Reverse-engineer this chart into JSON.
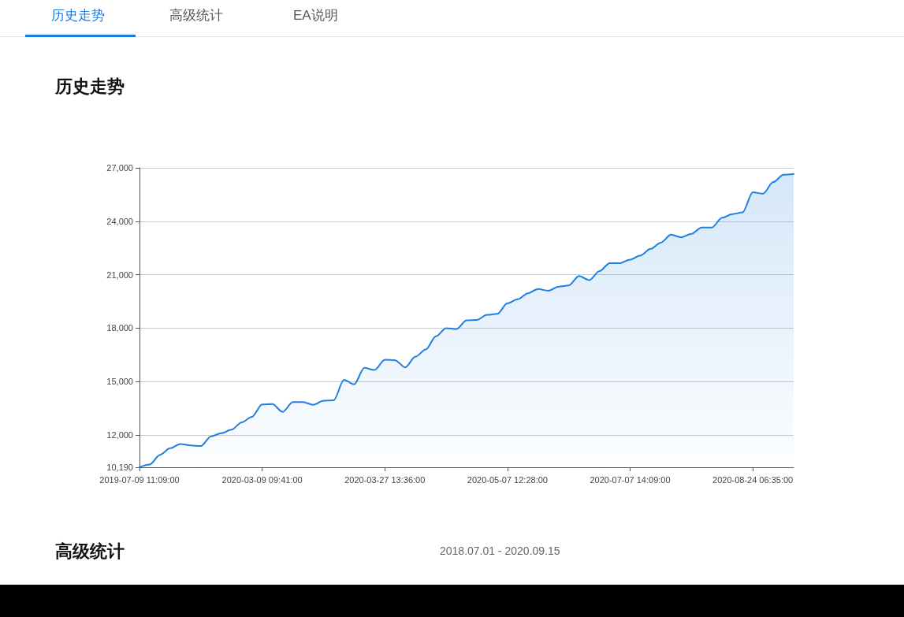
{
  "chart_data": {
    "type": "area",
    "title": "历史走势",
    "annotations": [
      "历史走势",
      "高级统计",
      "EA说明",
      "高级统计",
      "2018.07.01 - 2020.09.15"
    ],
    "categories": [
      "2019-07-09 11:09:00",
      null,
      null,
      null,
      null,
      null,
      null,
      null,
      null,
      null,
      null,
      null,
      "2020-03-09 09:41:00",
      null,
      null,
      null,
      null,
      null,
      null,
      null,
      null,
      null,
      null,
      null,
      "2020-03-27 13:36:00",
      null,
      null,
      null,
      null,
      null,
      null,
      null,
      null,
      null,
      null,
      null,
      "2020-05-07 12:28:00",
      null,
      null,
      null,
      null,
      null,
      null,
      null,
      null,
      null,
      null,
      null,
      "2020-07-07 14:09:00",
      null,
      null,
      null,
      null,
      null,
      null,
      null,
      null,
      null,
      null,
      null,
      "2020-08-24 06:35:00",
      null,
      null,
      null,
      null
    ],
    "series": [
      {
        "color": "#1f7fe0",
        "values": [
          10200,
          10350,
          10890,
          11260,
          11500,
          11420,
          11380,
          11930,
          12100,
          12300,
          12710,
          13020,
          13720,
          13740,
          13300,
          13850,
          13850,
          13700,
          13930,
          13950,
          15100,
          14850,
          15770,
          15650,
          16230,
          16200,
          15800,
          16400,
          16800,
          17540,
          18000,
          17950,
          18440,
          18460,
          18750,
          18800,
          19400,
          19620,
          19960,
          20200,
          20100,
          20330,
          20400,
          20930,
          20700,
          21200,
          21650,
          21650,
          21850,
          22080,
          22450,
          22800,
          23250,
          23100,
          23300,
          23650,
          23650,
          24200,
          24400,
          24500,
          25630,
          25550,
          26200,
          26610,
          26660
        ]
      }
    ],
    "ylim": [
      10190,
      27000
    ],
    "yticks": [
      {
        "value": 10190,
        "label": "10,190"
      },
      {
        "value": 12000,
        "label": "12,000"
      },
      {
        "value": 15000,
        "label": "15,000"
      },
      {
        "value": 18000,
        "label": "18,000"
      },
      {
        "value": 21000,
        "label": "21,000"
      },
      {
        "value": 24000,
        "label": "24,000"
      },
      {
        "value": 27000,
        "label": "27,000"
      }
    ],
    "grid": "y",
    "marker": "none",
    "line_style": "solid"
  }
}
